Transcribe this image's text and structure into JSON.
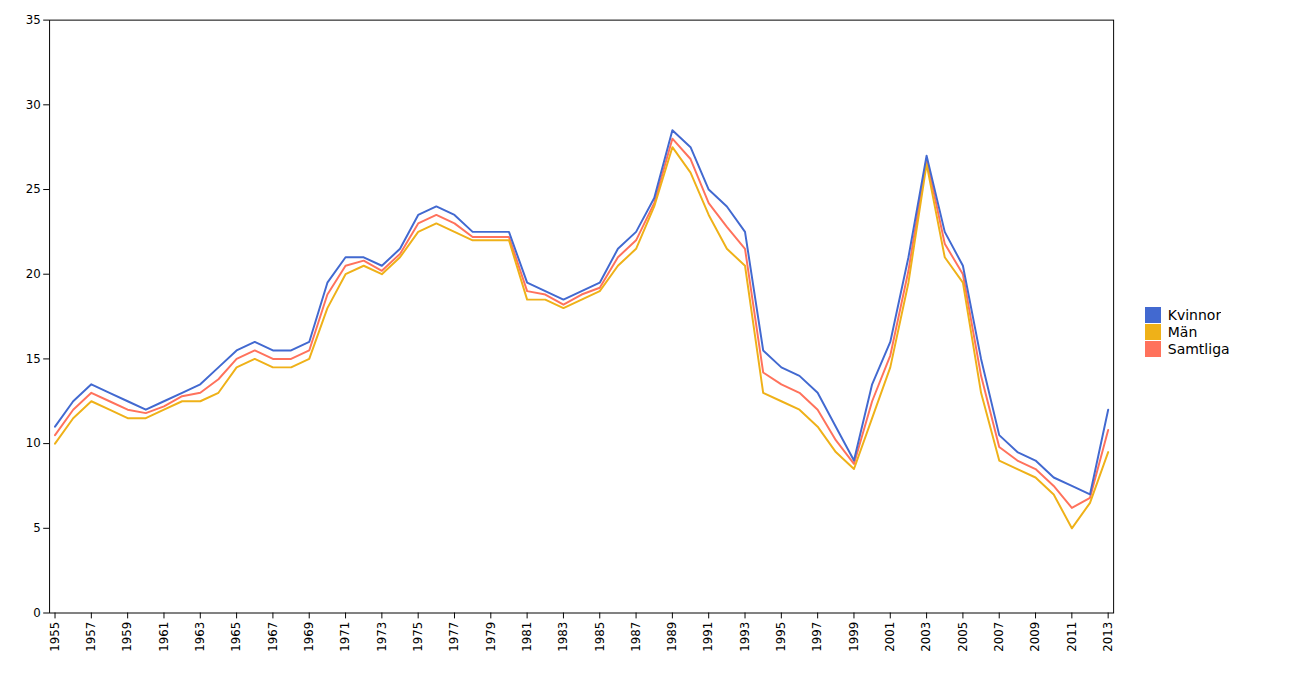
{
  "chart_data": {
    "type": "line",
    "x": [
      1955,
      1956,
      1957,
      1958,
      1959,
      1960,
      1961,
      1962,
      1963,
      1964,
      1965,
      1966,
      1967,
      1968,
      1969,
      1970,
      1971,
      1972,
      1973,
      1974,
      1975,
      1976,
      1977,
      1978,
      1979,
      1980,
      1981,
      1982,
      1983,
      1984,
      1985,
      1986,
      1987,
      1988,
      1989,
      1990,
      1991,
      1992,
      1993,
      1994,
      1995,
      1996,
      1997,
      1998,
      1999,
      2000,
      2001,
      2002,
      2003,
      2004,
      2005,
      2006,
      2007,
      2008,
      2009,
      2010,
      2011,
      2012,
      2013
    ],
    "series": [
      {
        "name": "Kvinnor",
        "values": [
          11.0,
          12.5,
          13.5,
          13.0,
          12.5,
          12.0,
          12.5,
          13.0,
          13.5,
          14.5,
          15.5,
          16.0,
          15.5,
          15.5,
          16.0,
          19.5,
          21.0,
          21.0,
          20.5,
          21.5,
          23.5,
          24.0,
          23.5,
          22.5,
          22.5,
          22.5,
          19.5,
          19.0,
          18.5,
          19.0,
          19.5,
          21.5,
          22.5,
          24.5,
          28.5,
          27.5,
          25.0,
          24.0,
          22.5,
          15.5,
          14.5,
          14.0,
          13.0,
          11.0,
          9.0,
          13.5,
          16.0,
          21.0,
          27.0,
          22.5,
          20.5,
          15.0,
          10.5,
          9.5,
          9.0,
          8.0,
          7.5,
          7.0,
          12.0
        ]
      },
      {
        "name": "Män",
        "values": [
          10.0,
          11.5,
          12.5,
          12.0,
          11.5,
          11.5,
          12.0,
          12.5,
          12.5,
          13.0,
          14.5,
          15.0,
          14.5,
          14.5,
          15.0,
          18.0,
          20.0,
          20.5,
          20.0,
          21.0,
          22.5,
          23.0,
          22.5,
          22.0,
          22.0,
          22.0,
          18.5,
          18.5,
          18.0,
          18.5,
          19.0,
          20.5,
          21.5,
          24.0,
          27.5,
          26.0,
          23.5,
          21.5,
          20.5,
          13.0,
          12.5,
          12.0,
          11.0,
          9.5,
          8.5,
          11.5,
          14.5,
          19.5,
          26.5,
          21.0,
          19.5,
          13.0,
          9.0,
          8.5,
          8.0,
          7.0,
          5.0,
          6.5,
          9.5
        ]
      },
      {
        "name": "Samtliga",
        "values": [
          10.5,
          12.0,
          13.0,
          12.5,
          12.0,
          11.8,
          12.2,
          12.8,
          13.0,
          13.8,
          15.0,
          15.5,
          15.0,
          15.0,
          15.5,
          18.8,
          20.5,
          20.8,
          20.2,
          21.2,
          23.0,
          23.5,
          23.0,
          22.2,
          22.2,
          22.2,
          19.0,
          18.8,
          18.2,
          18.8,
          19.2,
          21.0,
          22.0,
          24.2,
          28.0,
          26.8,
          24.2,
          22.8,
          21.5,
          14.2,
          13.5,
          13.0,
          12.0,
          10.2,
          8.8,
          12.5,
          15.2,
          20.2,
          26.8,
          21.8,
          20.0,
          14.0,
          9.8,
          9.0,
          8.5,
          7.5,
          6.2,
          6.8,
          10.8
        ]
      }
    ],
    "xlim": [
      1954.7,
      2013.3
    ],
    "xticks": [
      1955,
      1957,
      1959,
      1961,
      1963,
      1965,
      1967,
      1969,
      1971,
      1973,
      1975,
      1977,
      1979,
      1981,
      1983,
      1985,
      1987,
      1989,
      1991,
      1993,
      1995,
      1997,
      1999,
      2001,
      2003,
      2005,
      2007,
      2009,
      2011,
      2013
    ],
    "ylim": [
      0,
      35
    ],
    "yticks": [
      0,
      5,
      10,
      15,
      20,
      25,
      30,
      35
    ],
    "grid": false,
    "legend": "right"
  }
}
